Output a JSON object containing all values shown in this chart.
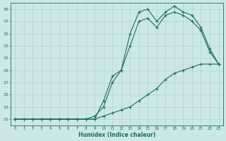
{
  "xlabel": "Humidex (Indice chaleur)",
  "background_color": "#cce8e4",
  "grid_color": "#aed4cf",
  "line_color": "#1a6e62",
  "xlim": [
    -0.5,
    23.5
  ],
  "ylim": [
    20.0,
    40.0
  ],
  "yticks": [
    21,
    23,
    25,
    27,
    29,
    31,
    33,
    35,
    37,
    39
  ],
  "xticks": [
    0,
    1,
    2,
    3,
    4,
    5,
    6,
    7,
    8,
    9,
    10,
    11,
    12,
    13,
    14,
    15,
    16,
    17,
    18,
    19,
    20,
    21,
    22,
    23
  ],
  "series": [
    {
      "x": [
        0,
        1,
        2,
        3,
        4,
        5,
        6,
        7,
        8,
        9,
        10,
        11,
        12,
        13,
        14,
        15,
        16,
        17,
        18,
        19,
        20,
        21,
        22,
        23
      ],
      "y": [
        21,
        21,
        21,
        21,
        21,
        21,
        21,
        21,
        21,
        21,
        21.5,
        22,
        22.5,
        23,
        24,
        25,
        26,
        27.5,
        28.5,
        29,
        29.5,
        30,
        30,
        30
      ]
    },
    {
      "x": [
        0,
        1,
        2,
        3,
        4,
        5,
        6,
        7,
        8,
        9,
        10,
        11,
        12,
        13,
        14,
        15,
        16,
        17,
        18,
        19,
        20,
        21,
        22,
        23
      ],
      "y": [
        21,
        21,
        21,
        21,
        21,
        21,
        21,
        21,
        21,
        21,
        24,
        28,
        29,
        33,
        37,
        37.5,
        36,
        38,
        38.5,
        38,
        37,
        35.5,
        32,
        30
      ]
    },
    {
      "x": [
        0,
        1,
        2,
        3,
        4,
        5,
        6,
        7,
        8,
        9,
        10,
        11,
        12,
        13,
        14,
        15,
        16,
        17,
        18,
        19,
        20,
        21,
        22,
        23
      ],
      "y": [
        21,
        21,
        21,
        21,
        21,
        21,
        21,
        21,
        21,
        21.5,
        23,
        27,
        29,
        35,
        38.5,
        39,
        37,
        38.5,
        39.5,
        38.5,
        38,
        36,
        32.5,
        30
      ]
    }
  ]
}
